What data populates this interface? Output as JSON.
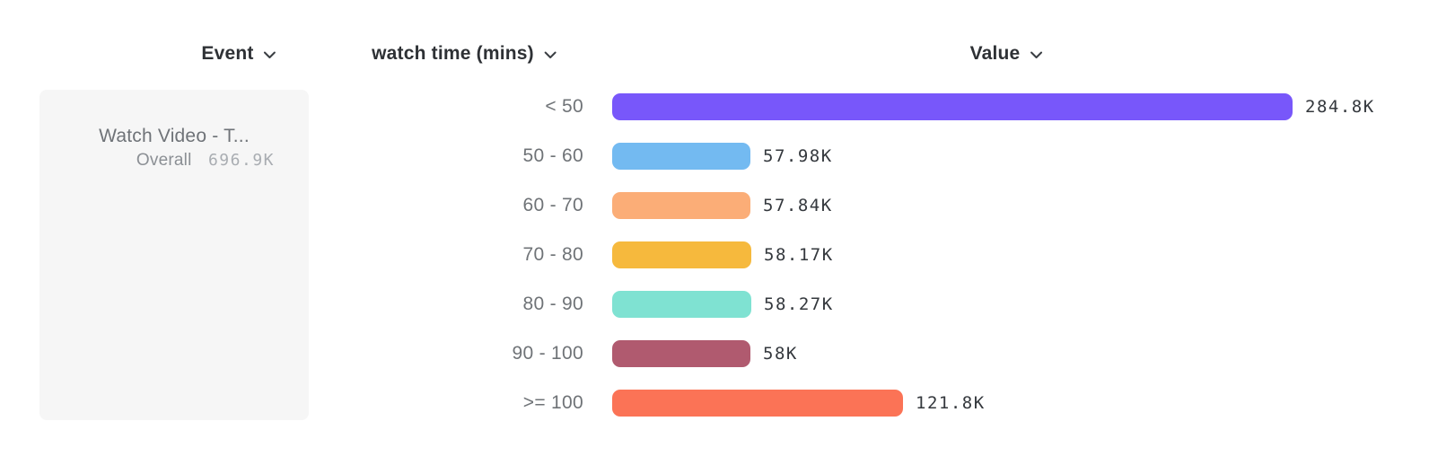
{
  "header": {
    "event_label": "Event",
    "dimension_label": "watch time (mins)",
    "value_label": "Value"
  },
  "event_card": {
    "title": "Watch Video - T...",
    "overall_label": "Overall",
    "overall_value": "696.9K"
  },
  "chart_data": {
    "type": "bar",
    "orientation": "horizontal",
    "title": "",
    "xlabel": "Value",
    "ylabel": "watch time (mins)",
    "categories": [
      "< 50",
      "50 - 60",
      "60 - 70",
      "70 - 80",
      "80 - 90",
      "90 - 100",
      ">= 100"
    ],
    "values": [
      284800,
      57980,
      57840,
      58170,
      58270,
      58000,
      121800
    ],
    "value_labels": [
      "284.8K",
      "57.98K",
      "57.84K",
      "58.17K",
      "58.27K",
      "58K",
      "121.8K"
    ],
    "bar_colors": [
      "#7857FA",
      "#73BAF1",
      "#FBAD77",
      "#F6B93D",
      "#7FE2D2",
      "#B05A6F",
      "#FB7356"
    ],
    "xlim": [
      0,
      284800
    ],
    "grid": false,
    "legend": false
  },
  "icons": {
    "chevron_down": "chevron-down"
  },
  "colors": {
    "page_background": "#ffffff",
    "card_background": "#f6f6f6",
    "header_text": "#2e3135",
    "category_text": "#6f7377",
    "value_text": "#34383d",
    "muted_text": "#a9adb2"
  }
}
